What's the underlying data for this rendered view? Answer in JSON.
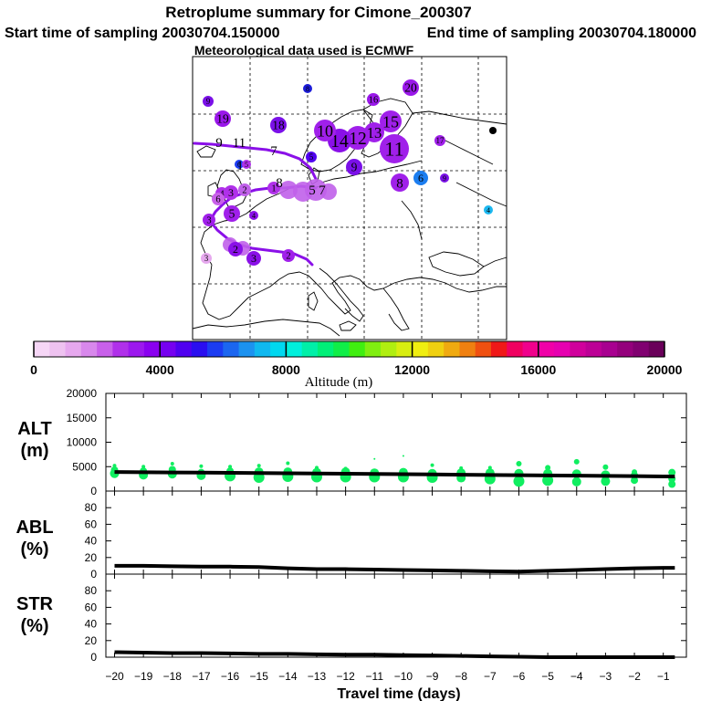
{
  "header": {
    "title": "Retroplume summary for Cimone_200307",
    "start_sampling": "Start time of sampling 20030704.150000",
    "end_sampling": "End time of sampling 20030704.180000",
    "met_data": "Meteorological data used is ECMWF"
  },
  "colorbar": {
    "label": "Altitude (m)",
    "tick_labels": [
      "0",
      "4000",
      "8000",
      "12000",
      "16000",
      "20000"
    ],
    "range": [
      0,
      20000
    ],
    "colors": [
      "#f6d6f6",
      "#eec2f0",
      "#e6a8ee",
      "#d888ec",
      "#c860ea",
      "#b030ea",
      "#9c18ee",
      "#8a00f0",
      "#7600f0",
      "#5000f0",
      "#2a0ef0",
      "#1c3cf2",
      "#1c66f0",
      "#1c92f0",
      "#10b8f0",
      "#00d8f0",
      "#00f0dc",
      "#00f0a8",
      "#00f078",
      "#10ee48",
      "#40ee10",
      "#80ee10",
      "#b0ee10",
      "#d8ee10",
      "#f0ee10",
      "#f0d010",
      "#f0aa10",
      "#f08010",
      "#f05010",
      "#f01818",
      "#f00060",
      "#f0008c",
      "#f000a8",
      "#e600b0",
      "#d0009c",
      "#bc0096",
      "#a80090",
      "#94007c",
      "#800070",
      "#6a005a"
    ]
  },
  "map": {
    "trajectories": [
      {
        "name": "upper-track",
        "color": "#8a10e8"
      },
      {
        "name": "middle-track",
        "color": "#8a10e8"
      },
      {
        "name": "lower-track",
        "color": "#8a10e8"
      }
    ],
    "cluster_markers": [
      {
        "day": "9",
        "color": "#7a10e8"
      },
      {
        "day": "19",
        "color": "#9a18ea"
      },
      {
        "day": "8",
        "color": "#1c1cd8"
      },
      {
        "day": "20",
        "color": "#9a18ea"
      },
      {
        "day": "16",
        "color": "#9a18ea"
      },
      {
        "day": "18",
        "color": "#7a10e8"
      },
      {
        "day": "17",
        "color": "#a020ea"
      },
      {
        "day": "15",
        "color": "#a020ea"
      },
      {
        "day": "13",
        "color": "#a020ea"
      },
      {
        "day": "12",
        "color": "#a020ea"
      },
      {
        "day": "14",
        "color": "#8a10e8"
      },
      {
        "day": "10",
        "color": "#a020ea"
      },
      {
        "day": "9",
        "color": "#7a10e8"
      },
      {
        "day": "11",
        "color": "#a020ea"
      },
      {
        "day": "8",
        "color": "#a020ea"
      },
      {
        "day": "6",
        "color": "#1c7ef0"
      },
      {
        "day": "9",
        "color": "#7a10e8"
      },
      {
        "day": "4",
        "color": "#1cb8f0"
      },
      {
        "day": "6",
        "color": "#1c3cf2"
      },
      {
        "day": "5",
        "color": "#b030ea"
      },
      {
        "day": "4",
        "color": "#b030ea"
      },
      {
        "day": "3",
        "color": "#b030ea"
      },
      {
        "day": "2",
        "color": "#c060ea"
      },
      {
        "day": "1",
        "color": "#b030ea"
      },
      {
        "day": "4",
        "color": "#8a10e8"
      },
      {
        "day": "5",
        "color": "#a020ea"
      },
      {
        "day": "6",
        "color": "#c860ea"
      },
      {
        "day": "3",
        "color": "#a020ea"
      },
      {
        "day": "2",
        "color": "#8a10e8"
      },
      {
        "day": "3",
        "color": "#8a10e8"
      },
      {
        "day": "2",
        "color": "#a020ea"
      },
      {
        "day": "3",
        "color": "#e6a8ee"
      },
      {
        "day": "5",
        "color": "#5000f0"
      },
      {
        "day": "10",
        "color": "#000000"
      },
      {
        "day": "11",
        "color": "#000000"
      },
      {
        "day": "9",
        "color": "#000000"
      },
      {
        "day": "7",
        "color": "#000000"
      },
      {
        "day": "7",
        "color": "#000000"
      },
      {
        "day": "5",
        "color": "#000000"
      },
      {
        "day": "8",
        "color": "#000000"
      },
      {
        "day": "1",
        "color": "#000000"
      }
    ]
  },
  "chart_data": [
    {
      "type": "line",
      "panel": "ALT",
      "ylabel_line1": "ALT",
      "ylabel_line2": "(m)",
      "xlabel": "Travel time (days)",
      "ylim": [
        0,
        20000
      ],
      "yticks": [
        "0",
        "5000",
        "10000",
        "15000",
        "20000"
      ],
      "ytick_values": [
        0,
        5000,
        10000,
        15000,
        20000
      ],
      "x": [
        -20,
        -19,
        -18,
        -17,
        -16,
        -15,
        -14,
        -13,
        -12,
        -11,
        -10,
        -9,
        -8,
        -7,
        -6,
        -5,
        -4,
        -3,
        -2,
        -1,
        -0.6
      ],
      "values": [
        3900,
        3850,
        3820,
        3780,
        3750,
        3700,
        3650,
        3600,
        3550,
        3500,
        3450,
        3400,
        3350,
        3300,
        3250,
        3200,
        3150,
        3100,
        3050,
        3000,
        3000
      ],
      "scatter": [
        {
          "x": -20,
          "y": 4300,
          "r": 4
        },
        {
          "x": -20,
          "y": 3600,
          "r": 5
        },
        {
          "x": -20,
          "y": 5200,
          "r": 2
        },
        {
          "x": -19,
          "y": 4100,
          "r": 4
        },
        {
          "x": -19,
          "y": 3300,
          "r": 5
        },
        {
          "x": -19,
          "y": 5000,
          "r": 2
        },
        {
          "x": -18,
          "y": 4400,
          "r": 4
        },
        {
          "x": -18,
          "y": 3500,
          "r": 5
        },
        {
          "x": -18,
          "y": 5600,
          "r": 2
        },
        {
          "x": -17,
          "y": 3800,
          "r": 4
        },
        {
          "x": -17,
          "y": 3200,
          "r": 5
        },
        {
          "x": -17,
          "y": 5100,
          "r": 2
        },
        {
          "x": -16,
          "y": 4100,
          "r": 4
        },
        {
          "x": -16,
          "y": 3100,
          "r": 6
        },
        {
          "x": -16,
          "y": 5000,
          "r": 2
        },
        {
          "x": -15,
          "y": 3900,
          "r": 5
        },
        {
          "x": -15,
          "y": 2800,
          "r": 6
        },
        {
          "x": -15,
          "y": 5200,
          "r": 2
        },
        {
          "x": -14,
          "y": 3900,
          "r": 5
        },
        {
          "x": -14,
          "y": 3000,
          "r": 6
        },
        {
          "x": -14,
          "y": 5700,
          "r": 2
        },
        {
          "x": -13,
          "y": 3800,
          "r": 5
        },
        {
          "x": -13,
          "y": 2900,
          "r": 6
        },
        {
          "x": -13,
          "y": 4800,
          "r": 2
        },
        {
          "x": -12,
          "y": 3900,
          "r": 5
        },
        {
          "x": -12,
          "y": 2900,
          "r": 6
        },
        {
          "x": -12,
          "y": 4600,
          "r": 2
        },
        {
          "x": -11,
          "y": 3700,
          "r": 5
        },
        {
          "x": -11,
          "y": 2900,
          "r": 6
        },
        {
          "x": -11,
          "y": 6600,
          "r": 1
        },
        {
          "x": -10,
          "y": 3800,
          "r": 5
        },
        {
          "x": -10,
          "y": 2900,
          "r": 6
        },
        {
          "x": -10,
          "y": 7200,
          "r": 1
        },
        {
          "x": -9,
          "y": 3600,
          "r": 5
        },
        {
          "x": -9,
          "y": 2800,
          "r": 6
        },
        {
          "x": -9,
          "y": 5300,
          "r": 2
        },
        {
          "x": -8,
          "y": 3700,
          "r": 5
        },
        {
          "x": -8,
          "y": 2700,
          "r": 5
        },
        {
          "x": -8,
          "y": 4700,
          "r": 2
        },
        {
          "x": -7,
          "y": 3700,
          "r": 5
        },
        {
          "x": -7,
          "y": 2500,
          "r": 6
        },
        {
          "x": -7,
          "y": 4800,
          "r": 2
        },
        {
          "x": -6,
          "y": 3600,
          "r": 5
        },
        {
          "x": -6,
          "y": 2000,
          "r": 6
        },
        {
          "x": -6,
          "y": 5600,
          "r": 3
        },
        {
          "x": -5,
          "y": 3600,
          "r": 5
        },
        {
          "x": -5,
          "y": 2200,
          "r": 6
        },
        {
          "x": -5,
          "y": 4800,
          "r": 3
        },
        {
          "x": -4,
          "y": 3500,
          "r": 5
        },
        {
          "x": -4,
          "y": 1900,
          "r": 5
        },
        {
          "x": -4,
          "y": 6000,
          "r": 3
        },
        {
          "x": -3,
          "y": 3300,
          "r": 5
        },
        {
          "x": -3,
          "y": 2000,
          "r": 5
        },
        {
          "x": -3,
          "y": 4900,
          "r": 3
        },
        {
          "x": -2,
          "y": 3200,
          "r": 4
        },
        {
          "x": -2,
          "y": 2200,
          "r": 4
        },
        {
          "x": -2,
          "y": 3900,
          "r": 3
        },
        {
          "x": -0.7,
          "y": 3800,
          "r": 4
        },
        {
          "x": -0.7,
          "y": 2500,
          "r": 4
        },
        {
          "x": -0.7,
          "y": 1400,
          "r": 4
        }
      ]
    },
    {
      "type": "line",
      "panel": "ABL",
      "ylabel_line1": "ABL",
      "ylabel_line2": "(%)",
      "ylim": [
        0,
        100
      ],
      "yticks": [
        "0",
        "20",
        "40",
        "60",
        "80"
      ],
      "ytick_values": [
        0,
        20,
        40,
        60,
        80
      ],
      "x": [
        -20,
        -19,
        -18,
        -17,
        -16,
        -15,
        -14,
        -13,
        -12,
        -11,
        -10,
        -9,
        -8,
        -7,
        -6,
        -5,
        -4,
        -3,
        -2,
        -1,
        -0.6
      ],
      "values": [
        10,
        10,
        9.5,
        9,
        9,
        8.5,
        7,
        6,
        6,
        5.5,
        5,
        4.5,
        4,
        3.5,
        3,
        4,
        5,
        6,
        7,
        7.5,
        7.5
      ]
    },
    {
      "type": "line",
      "panel": "STR",
      "ylabel_line1": "STR",
      "ylabel_line2": "(%)",
      "ylim": [
        0,
        100
      ],
      "yticks": [
        "0",
        "20",
        "40",
        "60",
        "80"
      ],
      "ytick_values": [
        0,
        20,
        40,
        60,
        80
      ],
      "x": [
        -20,
        -19,
        -18,
        -17,
        -16,
        -15,
        -14,
        -13,
        -12,
        -11,
        -10,
        -9,
        -8,
        -7,
        -6,
        -5,
        -4,
        -3,
        -2,
        -1,
        -0.6
      ],
      "values": [
        6,
        5.5,
        5,
        5,
        4.5,
        4,
        4,
        3.5,
        3,
        3,
        2.5,
        2,
        1.5,
        1,
        0.5,
        0,
        0,
        0,
        0,
        0,
        0
      ]
    }
  ],
  "xaxis": {
    "tick_values": [
      -20,
      -19,
      -18,
      -17,
      -16,
      -15,
      -14,
      -13,
      -12,
      -11,
      -10,
      -9,
      -8,
      -7,
      -6,
      -5,
      -4,
      -3,
      -2,
      -1
    ],
    "tick_labels": [
      "−20",
      "−19",
      "−18",
      "−17",
      "−16",
      "−15",
      "−14",
      "−13",
      "−12",
      "−11",
      "−10",
      "−9",
      "−8",
      "−7",
      "−6",
      "−5",
      "−4",
      "−3",
      "−2",
      "−1"
    ]
  }
}
